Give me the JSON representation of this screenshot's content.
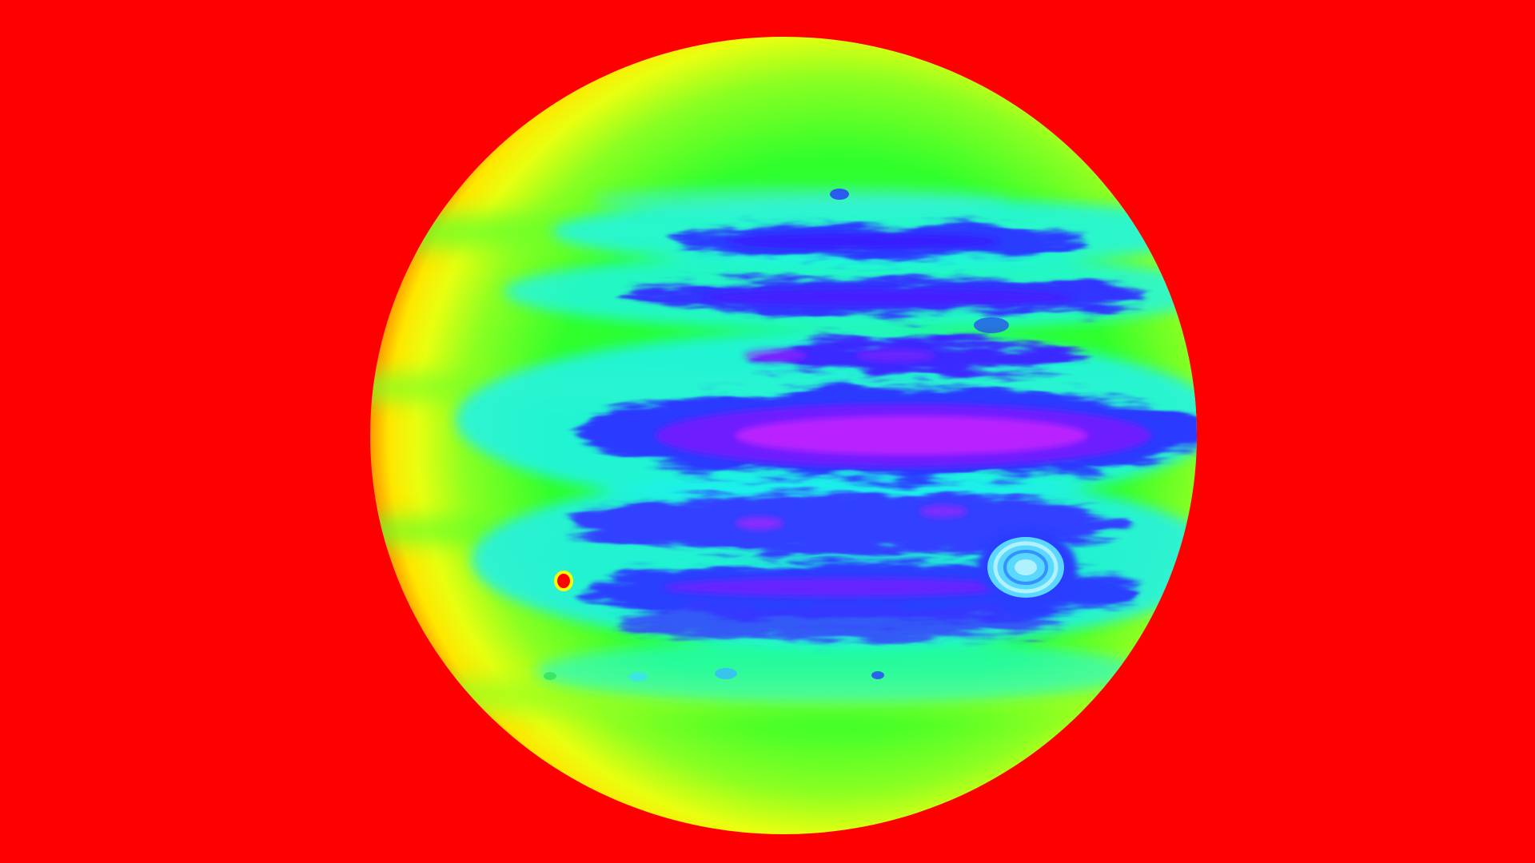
{
  "image": {
    "subject": "false-color-gas-giant",
    "features": [
      "banded-atmosphere",
      "oval-storm",
      "moon-shadow-spot"
    ]
  },
  "colors": {
    "background": "#ff0000",
    "limb_outer": "#ffa000",
    "limb_inner": "#ffff00",
    "disk_mid": "#6cff2a",
    "disk_green": "#1cff3c",
    "band_cyan": "#1ff5e8",
    "band_blue": "#2a3cff",
    "band_deep_blue": "#3a18ff",
    "band_violet": "#9a18ff",
    "band_magenta": "#cc22ff",
    "storm_pale": "#b8f4ff",
    "spot_core": "#ff0000",
    "spot_ring": "#ffff00"
  }
}
